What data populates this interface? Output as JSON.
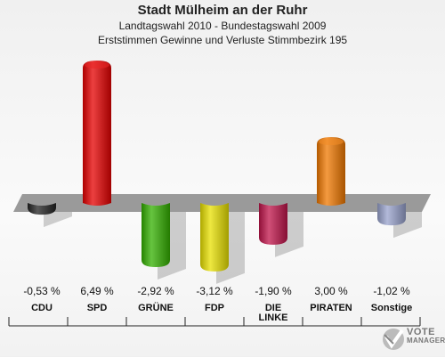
{
  "header": {
    "title": "Stadt Mülheim an der Ruhr",
    "subtitle": "Landtagswahl 2010 - Bundestagswahl 2009",
    "description": "Erststimmen Gewinne und Verluste Stimmbezirk 195"
  },
  "chart_data": {
    "type": "bar",
    "title": "Stadt Mülheim an der Ruhr",
    "categories": [
      "CDU",
      "SPD",
      "GRÜNE",
      "FDP",
      "DIE LINKE",
      "PIRATEN",
      "Sonstige"
    ],
    "category_lines": [
      [
        "CDU"
      ],
      [
        "SPD"
      ],
      [
        "GRÜNE"
      ],
      [
        "FDP"
      ],
      [
        "DIE",
        "LINKE"
      ],
      [
        "PIRATEN"
      ],
      [
        "Sonstige"
      ]
    ],
    "values": [
      -0.53,
      6.49,
      -2.92,
      -3.12,
      -1.9,
      3.0,
      -1.02
    ],
    "value_labels": [
      "-0,53 %",
      "6,49 %",
      "-2,92 %",
      "-3,12 %",
      "-1,90 %",
      "3,00 %",
      "-1,02 %"
    ],
    "colors": [
      "#222222",
      "#e60000",
      "#33b000",
      "#e8e000",
      "#c0144a",
      "#f07800",
      "#98a2cc"
    ],
    "unit": "%",
    "grid": false
  },
  "logo": {
    "line1": "VOTE",
    "line2": "MANAGER"
  }
}
